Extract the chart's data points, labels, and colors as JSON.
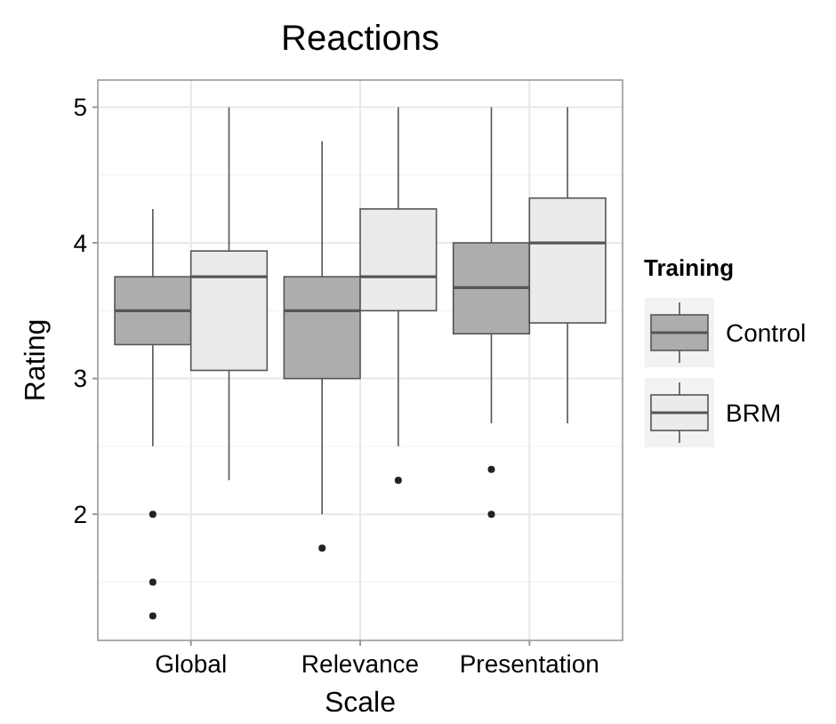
{
  "chart_data": {
    "type": "box",
    "title": "Reactions",
    "xlabel": "Scale",
    "ylabel": "Rating",
    "legend_title": "Training",
    "categories": [
      "Global",
      "Relevance",
      "Presentation"
    ],
    "ylim": [
      1.07,
      5.2
    ],
    "yticks": [
      2,
      3,
      4,
      5
    ],
    "grid": true,
    "legend": "right",
    "series": [
      {
        "name": "Control",
        "color": "#adadad",
        "boxes": [
          {
            "low": 2.5,
            "q1": 3.25,
            "median": 3.5,
            "q3": 3.75,
            "high": 4.25,
            "outliers": [
              2,
              1.5,
              1.25
            ]
          },
          {
            "low": 2,
            "q1": 3,
            "median": 3.5,
            "q3": 3.75,
            "high": 4.75,
            "outliers": [
              1.75
            ]
          },
          {
            "low": 2.67,
            "q1": 3.33,
            "median": 3.67,
            "q3": 4,
            "high": 5,
            "outliers": [
              2.33,
              2
            ]
          }
        ]
      },
      {
        "name": "BRM",
        "color": "#eaecec",
        "boxes": [
          {
            "low": 2.25,
            "q1": 3.06,
            "median": 3.75,
            "q3": 3.94,
            "high": 5
          },
          {
            "low": 2.5,
            "q1": 3.5,
            "median": 3.75,
            "q3": 4.25,
            "high": 5,
            "outliers": [
              2.25
            ]
          },
          {
            "low": 2.67,
            "q1": 3.41,
            "median": 4,
            "q3": 4.33,
            "high": 5
          }
        ]
      }
    ]
  }
}
